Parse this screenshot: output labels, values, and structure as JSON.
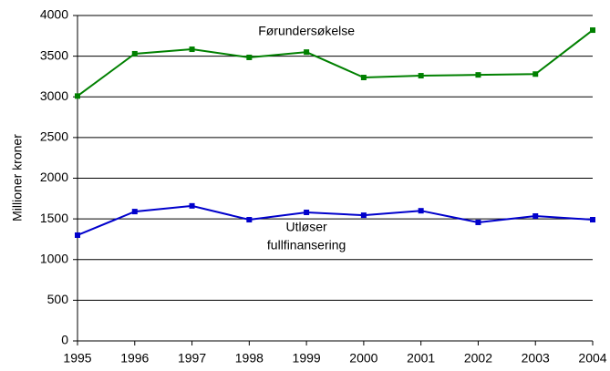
{
  "chart_data": {
    "type": "line",
    "y_label": "Millioner kroner",
    "x": [
      1995,
      1996,
      1997,
      1998,
      1999,
      2000,
      2001,
      2002,
      2003,
      2004
    ],
    "series": [
      {
        "color": "#008000",
        "values": [
          3010,
          3530,
          3585,
          3485,
          3550,
          3238,
          3260,
          3270,
          3280,
          3820
        ]
      },
      {
        "color": "#0000cc",
        "values": [
          1300,
          1590,
          1660,
          1490,
          1580,
          1545,
          1600,
          1457,
          1535,
          1490
        ]
      }
    ],
    "annotations": [
      {
        "text": "Førundersøkelse",
        "x": 1999,
        "y": 3800
      },
      {
        "text": "Utløser",
        "x": 1999,
        "y": 1390
      },
      {
        "text": "fullfinansering",
        "x": 1999,
        "y": 1170
      }
    ],
    "xlim": [
      1995,
      2004
    ],
    "xticks": [
      1995,
      1996,
      1997,
      1998,
      1999,
      2000,
      2001,
      2002,
      2003,
      2004
    ],
    "ylim": [
      0,
      4000
    ],
    "yticks": [
      0,
      500,
      1000,
      1500,
      2000,
      2500,
      3000,
      3500,
      4000
    ],
    "grid": true
  }
}
